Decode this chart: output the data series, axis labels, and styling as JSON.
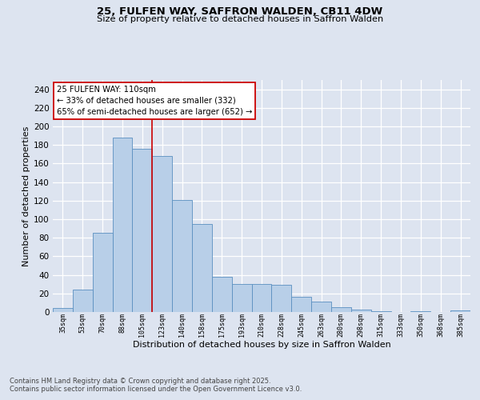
{
  "title1": "25, FULFEN WAY, SAFFRON WALDEN, CB11 4DW",
  "title2": "Size of property relative to detached houses in Saffron Walden",
  "xlabel": "Distribution of detached houses by size in Saffron Walden",
  "ylabel": "Number of detached properties",
  "categories": [
    "35sqm",
    "53sqm",
    "70sqm",
    "88sqm",
    "105sqm",
    "123sqm",
    "140sqm",
    "158sqm",
    "175sqm",
    "193sqm",
    "210sqm",
    "228sqm",
    "245sqm",
    "263sqm",
    "280sqm",
    "298sqm",
    "315sqm",
    "333sqm",
    "350sqm",
    "368sqm",
    "385sqm"
  ],
  "values": [
    4,
    24,
    85,
    188,
    176,
    168,
    121,
    95,
    38,
    30,
    30,
    29,
    16,
    11,
    5,
    3,
    1,
    0,
    1,
    0,
    2
  ],
  "bar_color": "#b8cfe8",
  "bar_edge_color": "#5a8fc0",
  "background_color": "#dde4f0",
  "grid_color": "#ffffff",
  "red_line_x": 4.5,
  "annotation_line1": "25 FULFEN WAY: 110sqm",
  "annotation_line2": "← 33% of detached houses are smaller (332)",
  "annotation_line3": "65% of semi-detached houses are larger (652) →",
  "annotation_box_color": "#ffffff",
  "annotation_box_edge": "#cc0000",
  "red_line_color": "#cc0000",
  "ylim": [
    0,
    250
  ],
  "yticks": [
    0,
    20,
    40,
    60,
    80,
    100,
    120,
    140,
    160,
    180,
    200,
    220,
    240
  ],
  "footer1": "Contains HM Land Registry data © Crown copyright and database right 2025.",
  "footer2": "Contains public sector information licensed under the Open Government Licence v3.0."
}
